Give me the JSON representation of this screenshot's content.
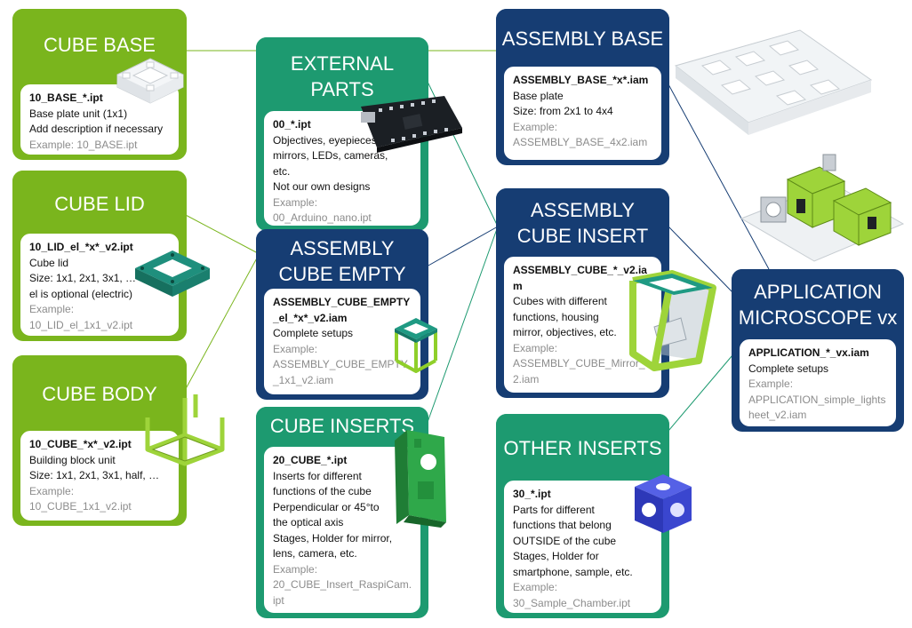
{
  "colors": {
    "green": "#7ab51d",
    "teal": "#1d9a70",
    "navy": "#163d73",
    "example_gray": "#8c8c8c"
  },
  "cards": {
    "cube_base": {
      "title": "CUBE BASE",
      "file": "10_BASE_*.ipt",
      "lines": [
        "Base plate unit (1x1)",
        "Add description if necessary"
      ],
      "example": "Example: 10_BASE.ipt"
    },
    "cube_lid": {
      "title": "CUBE LID",
      "file": "10_LID_el_*x*_v2.ipt",
      "lines": [
        "Cube lid",
        "Size: 1x1, 2x1, 3x1, …",
        "el is optional (electric)"
      ],
      "example_label": "Example:",
      "example": "10_LID_el_1x1_v2.ipt"
    },
    "cube_body": {
      "title": "CUBE BODY",
      "file": "10_CUBE_*x*_v2.ipt",
      "lines": [
        "Building block unit",
        "Size: 1x1, 2x1, 3x1, half, …"
      ],
      "example_label": "Example:",
      "example": "10_CUBE_1x1_v2.ipt"
    },
    "external_parts": {
      "title": "EXTERNAL PARTS",
      "file": "00_*.ipt",
      "lines": [
        "Objectives, eyepieces,",
        "mirrors, LEDs, cameras,",
        "etc.",
        "Not our own designs"
      ],
      "example_label": "Example:",
      "example": "00_Arduino_nano.ipt"
    },
    "assembly_cube_empty": {
      "title": "ASSEMBLY CUBE EMPTY",
      "file": "ASSEMBLY_CUBE_EMPTY_el_*x*_v2.iam",
      "lines": [
        "Complete setups"
      ],
      "example_label": "Example:",
      "example": "ASSEMBLY_CUBE_EMPTY_1x1_v2.iam"
    },
    "cube_inserts": {
      "title": "CUBE INSERTS",
      "file": "20_CUBE_*.ipt",
      "lines": [
        "Inserts for different",
        "functions of the cube",
        "Perpendicular or 45°to",
        "the optical axis",
        "Stages, Holder for mirror,",
        "lens, camera, etc."
      ],
      "example_label": "Example:",
      "example": "20_CUBE_Insert_RaspiCam.ipt"
    },
    "assembly_base": {
      "title": "ASSEMBLY BASE",
      "file": "ASSEMBLY_BASE_*x*.iam",
      "lines": [
        "Base plate",
        "Size: from 2x1 to 4x4"
      ],
      "example_label": "Example:",
      "example": "ASSEMBLY_BASE_4x2.iam"
    },
    "assembly_cube_insert": {
      "title": "ASSEMBLY CUBE INSERT",
      "file": "ASSEMBLY_CUBE_*_v2.iam",
      "lines": [
        "Cubes with different",
        "functions, housing",
        "mirror, objectives, etc."
      ],
      "example_label": "Example:",
      "example": "ASSEMBLY_CUBE_Mirror_v2.iam"
    },
    "other_inserts": {
      "title": "OTHER INSERTS",
      "file": "30_*.ipt",
      "lines": [
        "Parts for different",
        "functions that belong",
        "OUTSIDE of the cube",
        "Stages, Holder for",
        "smartphone, sample, etc."
      ],
      "example_label": "Example:",
      "example": "30_Sample_Chamber.ipt"
    },
    "application": {
      "title": "APPLICATION MICROSCOPE vx",
      "file": "APPLICATION_*_vx.iam",
      "lines": [
        "Complete setups"
      ],
      "example_label": "Example:",
      "example": "APPLICATION_simple_lightsheet_v2.iam"
    }
  }
}
